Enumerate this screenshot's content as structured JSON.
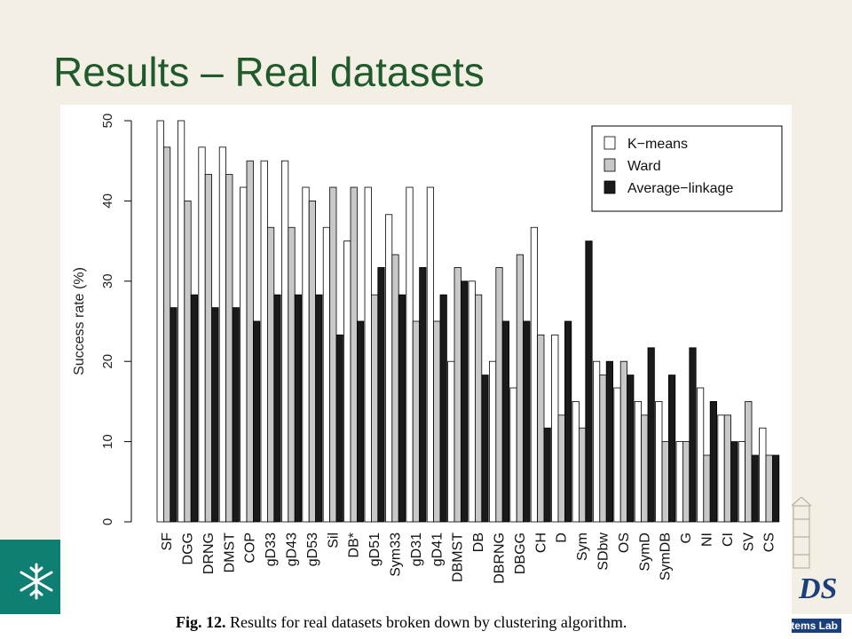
{
  "slide": {
    "title": "Results – Real datasets",
    "footer_fragment": "tems Lab",
    "logo_letters": "DS",
    "colors": {
      "title": "#1f5a2b",
      "background": "#f3efe4",
      "band": "#0f7f74"
    }
  },
  "figure": {
    "caption_label": "Fig. 12.",
    "caption_text": "Results for real datasets broken down by clustering algorithm."
  },
  "chart_data": {
    "type": "bar",
    "ylabel": "Success rate (%)",
    "xlabel": "",
    "ylim": [
      0,
      50
    ],
    "yticks": [
      0,
      10,
      20,
      30,
      40,
      50
    ],
    "grid": false,
    "legend_position": "top-right",
    "categories": [
      "SF",
      "DGG",
      "DRNG",
      "DMST",
      "COP",
      "gD33",
      "gD43",
      "gD53",
      "Sil",
      "DB*",
      "gD51",
      "Sym33",
      "gD31",
      "gD41",
      "DBMST",
      "DB",
      "DBRNG",
      "DBGG",
      "CH",
      "D",
      "Sym",
      "SDbw",
      "OS",
      "SymD",
      "SymDB",
      "G",
      "NI",
      "CI",
      "SV",
      "CS"
    ],
    "series": [
      {
        "name": "K−means",
        "color": "#ffffff",
        "values": [
          50,
          50,
          46.7,
          46.7,
          41.7,
          45,
          45,
          41.7,
          36.7,
          35,
          41.7,
          38.3,
          41.7,
          41.7,
          20,
          30,
          20,
          16.7,
          36.7,
          23.3,
          15,
          20,
          16.7,
          15,
          15,
          10,
          16.7,
          13.3,
          10,
          11.7
        ]
      },
      {
        "name": "Ward",
        "color": "#c8c8c8",
        "values": [
          46.7,
          40,
          43.3,
          43.3,
          45,
          36.7,
          36.7,
          40,
          41.7,
          41.7,
          28.3,
          33.3,
          25,
          25,
          31.7,
          28.3,
          31.7,
          33.3,
          23.3,
          13.3,
          11.7,
          18.3,
          20,
          13.3,
          10,
          10,
          8.3,
          13.3,
          15,
          8.3
        ]
      },
      {
        "name": "Average−linkage",
        "color": "#1a1a1a",
        "values": [
          26.7,
          28.3,
          26.7,
          26.7,
          25,
          28.3,
          28.3,
          28.3,
          23.3,
          25,
          31.7,
          28.3,
          31.7,
          28.3,
          30,
          18.3,
          25,
          25,
          11.7,
          25,
          35,
          20,
          18.3,
          21.7,
          18.3,
          21.7,
          15,
          10,
          8.3,
          8.3
        ]
      }
    ]
  }
}
